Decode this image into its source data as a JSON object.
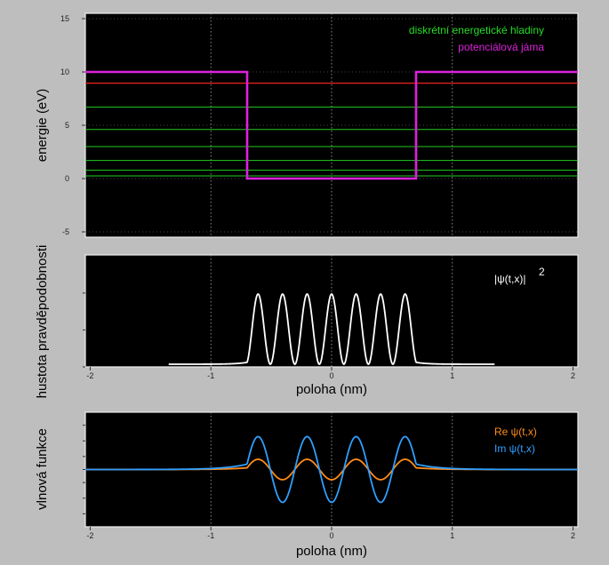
{
  "chart_data": [
    {
      "type": "line",
      "id": "energy",
      "ylabel": "energie (eV)",
      "ylim": [
        -5.5,
        15.5
      ],
      "xlim": [
        -2.04,
        2.04
      ],
      "yticks": [
        -5,
        0,
        5,
        10,
        15
      ],
      "grid": true,
      "legend": [
        {
          "label": "diskrétní energetické hladiny",
          "color": "#22dd22"
        },
        {
          "label": "potenciálová jáma",
          "color": "#dd22dd"
        }
      ],
      "potential": {
        "name": "potenciálová jáma",
        "color": "#dd22dd",
        "x": [
          -2.04,
          -0.7,
          -0.7,
          0.7,
          0.7,
          2.04
        ],
        "y": [
          10,
          10,
          0,
          0,
          10,
          10
        ]
      },
      "levels": [
        0.25,
        0.78,
        1.7,
        3.0,
        4.6,
        6.7
      ],
      "highlight_level": {
        "value": 8.95,
        "color": "#ee2222"
      }
    },
    {
      "type": "line",
      "id": "density",
      "ylabel": "hustota pravděpodobnosti",
      "xlabel": "poloha (nm)",
      "xlim": [
        -2.04,
        2.04
      ],
      "ylim": [
        0,
        1.0
      ],
      "xticks": [
        -2,
        -1,
        0,
        1,
        2
      ],
      "grid": true,
      "legend": [
        {
          "label": "|ψ(t,x)|",
          "superscript": "2",
          "color": "#ffffff"
        }
      ],
      "series": [
        {
          "label": "|ψ(t,x)|²",
          "color": "#ffffff",
          "function": "square_well_state_n7",
          "well_halfwidth": 0.7,
          "peak": 1.0,
          "decay": 0.18
        }
      ]
    },
    {
      "type": "line",
      "id": "wavefunction",
      "ylabel": "vlnová funkce",
      "xlabel": "poloha (nm)",
      "xlim": [
        -2.04,
        2.04
      ],
      "ylim": [
        -1.1,
        1.1
      ],
      "xticks": [
        -2,
        -1,
        0,
        1,
        2
      ],
      "grid": true,
      "legend": [
        {
          "label": "Re ψ(t,x)",
          "color": "#ff8c1a"
        },
        {
          "label": "Im ψ(t,x)",
          "color": "#2f9fff"
        }
      ],
      "series": [
        {
          "label": "Re ψ(t,x)",
          "color": "#ff8c1a",
          "amplitude": 0.31
        },
        {
          "label": "Im ψ(t,x)",
          "color": "#2f9fff",
          "amplitude": 1.0
        }
      ]
    }
  ]
}
